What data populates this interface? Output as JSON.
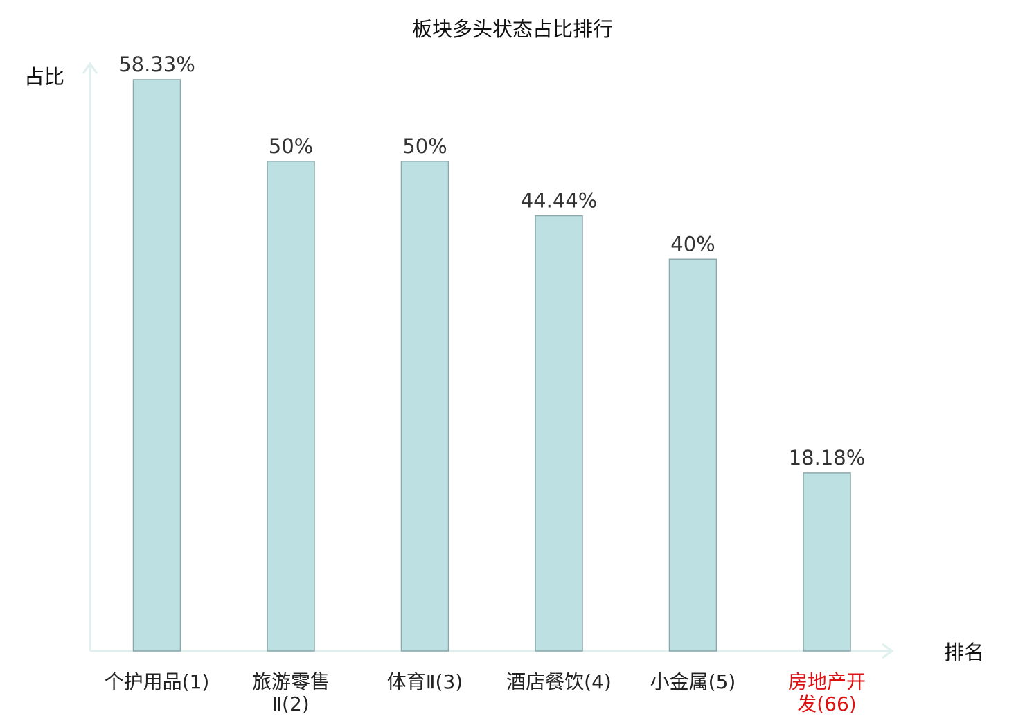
{
  "chart_data": {
    "type": "bar",
    "title": "板块多头状态占比排行",
    "ylabel": "占比",
    "xlabel": "排名",
    "ylim": [
      0,
      60
    ],
    "grid": false,
    "legend": "none",
    "categories": [
      {
        "lines": [
          "个护用品(1)"
        ],
        "highlight": false
      },
      {
        "lines": [
          "旅游零售",
          "Ⅱ(2)"
        ],
        "highlight": false
      },
      {
        "lines": [
          "体育Ⅱ(3)"
        ],
        "highlight": false
      },
      {
        "lines": [
          "酒店餐饮(4)"
        ],
        "highlight": false
      },
      {
        "lines": [
          "小金属(5)"
        ],
        "highlight": false
      },
      {
        "lines": [
          "房地产开",
          "发(66)"
        ],
        "highlight": true
      }
    ],
    "values": [
      58.33,
      50,
      50,
      44.44,
      40,
      18.18
    ],
    "data_labels": [
      "58.33%",
      "50%",
      "50%",
      "44.44%",
      "40%",
      "18.18%"
    ],
    "colors": {
      "bar_fill": "#bde0e3",
      "bar_stroke": "#8aa7aa",
      "axis": "#dff0ee",
      "label_text": "#333333",
      "category_text": "#222222",
      "highlight_text": "#dd1111",
      "title_text": "#111111"
    }
  }
}
